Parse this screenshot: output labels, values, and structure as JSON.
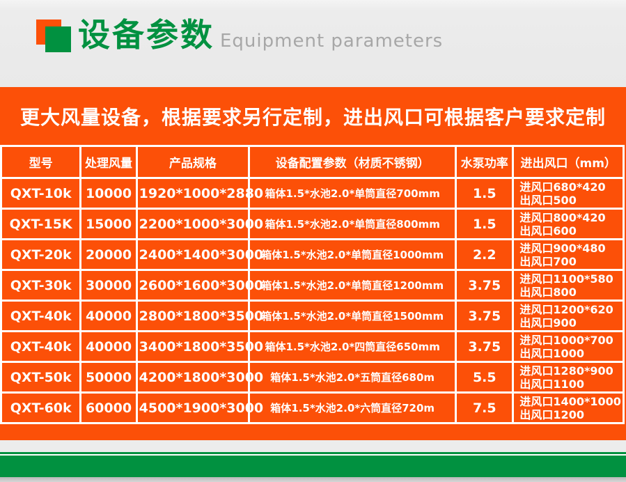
{
  "header": {
    "title_cn": "设备参数",
    "title_en": "Equipment parameters"
  },
  "banner": {
    "text": "更大风量设备，根据要求另行定制，进出风口可根据客户要求定制"
  },
  "table": {
    "columns": [
      "型号",
      "处理风量",
      "产品规格",
      "设备配置参数（材质不锈钢）",
      "水泵功率",
      "进出风口（mm）"
    ],
    "rows": [
      {
        "model": "QXT-10k",
        "airflow": "10000",
        "size": "1920*1000*2880",
        "config": "箱体1.5*水池2.0*单筒直径700mm",
        "pump_kw": "1.5",
        "inlet": "进风口680*420",
        "outlet": "出风口500"
      },
      {
        "model": "QXT-15K",
        "airflow": "15000",
        "size": "2200*1000*3000",
        "config": "箱体1.5*水池2.0*单筒直径800mm",
        "pump_kw": "1.5",
        "inlet": "进风口800*420",
        "outlet": "出风口600"
      },
      {
        "model": "QXT-20k",
        "airflow": "20000",
        "size": "2400*1400*3000",
        "config": "箱体1.5*水池2.0*单筒直径1000mm",
        "pump_kw": "2.2",
        "inlet": "进风口900*480",
        "outlet": "出风口700"
      },
      {
        "model": "QXT-30k",
        "airflow": "30000",
        "size": "2600*1600*3000",
        "config": "箱体1.5*水池2.0*单筒直径1200mm",
        "pump_kw": "3.75",
        "inlet": "进风口1100*580",
        "outlet": "出风口800"
      },
      {
        "model": "QXT-40k",
        "airflow": "40000",
        "size": "2800*1800*3500",
        "config": "箱体1.5*水池2.0*单筒直径1500mm",
        "pump_kw": "3.75",
        "inlet": "进风口1200*620",
        "outlet": "出风口900"
      },
      {
        "model": "QXT-40k",
        "airflow": "40000",
        "size": "3400*1800*3500",
        "config": "箱体1.5*水池2.0*四筒直径650mm",
        "pump_kw": "3.75",
        "inlet": "进风口1000*700",
        "outlet": "出风口1000"
      },
      {
        "model": "QXT-50k",
        "airflow": "50000",
        "size": "4200*1800*3000",
        "config": "箱体1.5*水池2.0*五筒直径680m",
        "pump_kw": "5.5",
        "inlet": "进风口1280*900",
        "outlet": "出风口1100"
      },
      {
        "model": "QXT-60k",
        "airflow": "60000",
        "size": "4500*1900*3000",
        "config": "箱体1.5*水池2.0*六筒直径720m",
        "pump_kw": "7.5",
        "inlet": "进风口1400*1000",
        "outlet": "出风口1200"
      }
    ]
  },
  "colors": {
    "orange": "#fc5008",
    "green": "#019140",
    "header_gray": "#ececec",
    "subtitle_gray": "#a7a7a7",
    "table_text": "#ffffff"
  }
}
